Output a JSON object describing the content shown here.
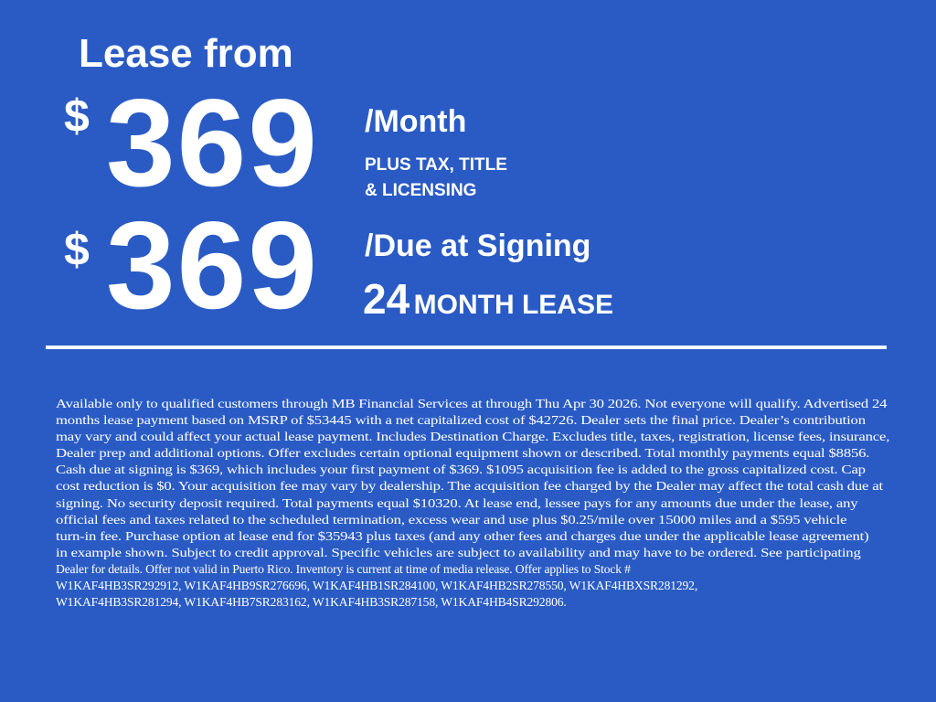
{
  "headline": {
    "lease_from": "Lease from",
    "monthly": {
      "currency": "$",
      "amount": "369",
      "label": "/Month"
    },
    "tax_note": [
      "PLUS TAX, TITLE",
      "& LICENSING"
    ],
    "due_at_signing": {
      "currency": "$",
      "amount": "369",
      "label": "/Due at Signing"
    },
    "term": {
      "number": "24",
      "label": "MONTH LEASE"
    }
  },
  "disclaimer_lines": [
    "Available only to qualified customers through MB Financial Services at  through Thu Apr 30 2026. Not everyone will qualify. Advertised 24",
    "months lease payment based on MSRP of $53445 with a net capitalized cost of $42726. Dealer sets the final price. Dealer’s contribution",
    "may vary and could affect your actual lease payment. Includes Destination Charge. Excludes title, taxes, registration, license fees, insurance,",
    "Dealer prep and additional options. Offer excludes certain optional equipment shown or described. Total monthly payments equal $8856.",
    "Cash due at signing is $369, which includes your first payment of $369. $1095 acquisition fee is added to the gross capitalized cost. Cap",
    "cost reduction is $0. Your acquisition fee may vary by dealership. The acquisition fee charged by the Dealer may affect the total cash due at",
    "signing. No security deposit required. Total payments equal $10320. At lease end, lessee pays for any amounts due under the lease, any",
    "official fees and taxes related to the scheduled termination, excess wear and use plus $0.25/mile over 15000 miles and a $595 vehicle",
    "turn-in fee. Purchase option at lease end for $35943 plus taxes (and any other fees and charges due under the applicable lease agreement)",
    "in example shown. Subject to credit approval. Specific vehicles are subject to availability and may have to be ordered. See participating",
    "Dealer for details. Offer not valid in Puerto Rico. Inventory is current at time of media release. Offer applies to Stock #",
    "W1KAF4HB3SR292912, W1KAF4HB9SR276696, W1KAF4HB1SR284100, W1KAF4HB2SR278550, W1KAF4HBXSR281292,",
    "W1KAF4HB3SR281294, W1KAF4HB7SR283162, W1KAF4HB3SR287158, W1KAF4HB4SR292806."
  ],
  "colors": {
    "background": "#2a5bc4",
    "text": "#ffffff"
  }
}
